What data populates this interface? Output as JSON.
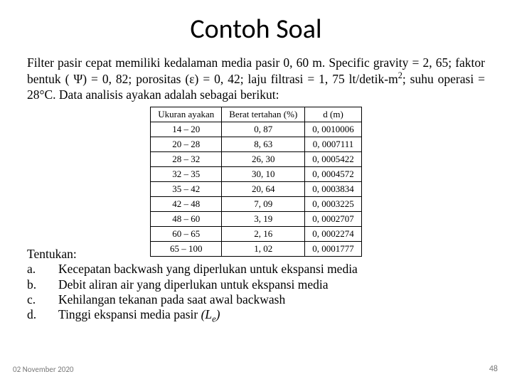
{
  "title": "Contoh Soal",
  "desc_html": "Filter pasir cepat memiliki kedalaman media pasir 0, 60 m. Specific gravity = 2, 65; faktor bentuk ( Ψ) = 0, 82; porositas (ε) = 0, 42; laju filtrasi = 1, 75 lt/detik-m<span class=\"sup\">2</span>; suhu operasi = 28°C. Data analisis ayakan adalah sebagai berikut:",
  "table": {
    "columns": [
      "Ukuran ayakan",
      "Berat tertahan (%)",
      "d (m)"
    ],
    "rows": [
      [
        "14 – 20",
        "0, 87",
        "0, 0010006"
      ],
      [
        "20 – 28",
        "8, 63",
        "0, 0007111"
      ],
      [
        "28 – 32",
        "26, 30",
        "0, 0005422"
      ],
      [
        "32 – 35",
        "30, 10",
        "0, 0004572"
      ],
      [
        "35 – 42",
        "20, 64",
        "0, 0003834"
      ],
      [
        "42 – 48",
        "7, 09",
        "0, 0003225"
      ],
      [
        "48 – 60",
        "3, 19",
        "0, 0002707"
      ],
      [
        "60 – 65",
        "2, 16",
        "0, 0002274"
      ],
      [
        "65 – 100",
        "1, 02",
        "0, 0001777"
      ]
    ]
  },
  "tentukan_label": "Tentukan:",
  "items": [
    {
      "marker": "a.",
      "text": "Kecepatan backwash yang diperlukan untuk ekspansi media"
    },
    {
      "marker": "b.",
      "text": "Debit aliran air yang diperlukan untuk ekspansi media"
    },
    {
      "marker": "c.",
      "text": "Kehilangan tekanan pada saat awal backwash"
    }
  ],
  "item_d": {
    "marker": "d.",
    "prefix": "Tinggi ekspansi media pasir ",
    "var": "(L",
    "sub": "e",
    "suffix": ")"
  },
  "footer_date": "02 November 2020",
  "footer_page": "48"
}
